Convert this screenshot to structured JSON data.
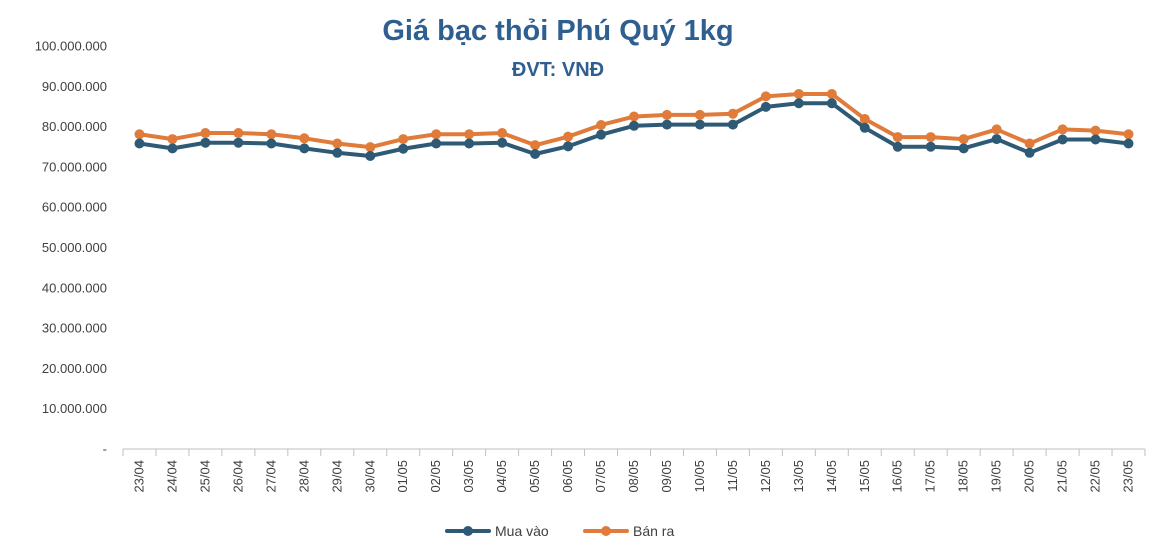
{
  "chart_data": {
    "type": "line",
    "title": "Giá bạc thỏi Phú Quý 1kg",
    "subtitle": "ĐVT: VNĐ",
    "xlabel": "",
    "ylabel": "",
    "ylim": [
      0,
      100000000
    ],
    "y_ticks": [
      0,
      10000000,
      20000000,
      30000000,
      40000000,
      50000000,
      60000000,
      70000000,
      80000000,
      90000000,
      100000000
    ],
    "y_tick_labels": [
      "-",
      "10.000.000",
      "20.000.000",
      "30.000.000",
      "40.000.000",
      "50.000.000",
      "60.000.000",
      "70.000.000",
      "80.000.000",
      "90.000.000",
      "100.000.000"
    ],
    "grid": false,
    "legend_position": "bottom",
    "categories": [
      "23/04",
      "24/04",
      "25/04",
      "26/04",
      "27/04",
      "28/04",
      "29/04",
      "30/04",
      "01/05",
      "02/05",
      "03/05",
      "04/05",
      "05/05",
      "06/05",
      "07/05",
      "08/05",
      "09/05",
      "10/05",
      "11/05",
      "12/05",
      "13/05",
      "14/05",
      "15/05",
      "16/05",
      "17/05",
      "18/05",
      "19/05",
      "20/05",
      "21/05",
      "22/05",
      "23/05"
    ],
    "series": [
      {
        "name": "Mua vào",
        "color": "#2e5a76",
        "values": [
          75800000,
          74600000,
          76000000,
          76000000,
          75800000,
          74600000,
          73500000,
          72700000,
          74500000,
          75800000,
          75800000,
          76000000,
          73200000,
          75100000,
          78000000,
          80200000,
          80500000,
          80500000,
          80500000,
          84900000,
          85800000,
          85800000,
          79700000,
          75000000,
          75000000,
          74600000,
          76900000,
          73500000,
          76800000,
          76800000,
          75800000
        ]
      },
      {
        "name": "Bán ra",
        "color": "#e07b39",
        "values": [
          78100000,
          76900000,
          78400000,
          78400000,
          78100000,
          77100000,
          75800000,
          74900000,
          76900000,
          78100000,
          78100000,
          78400000,
          75400000,
          77500000,
          80400000,
          82500000,
          82900000,
          82900000,
          83200000,
          87500000,
          88100000,
          88100000,
          81900000,
          77400000,
          77400000,
          76900000,
          79300000,
          75800000,
          79300000,
          79000000,
          78100000
        ]
      }
    ]
  }
}
